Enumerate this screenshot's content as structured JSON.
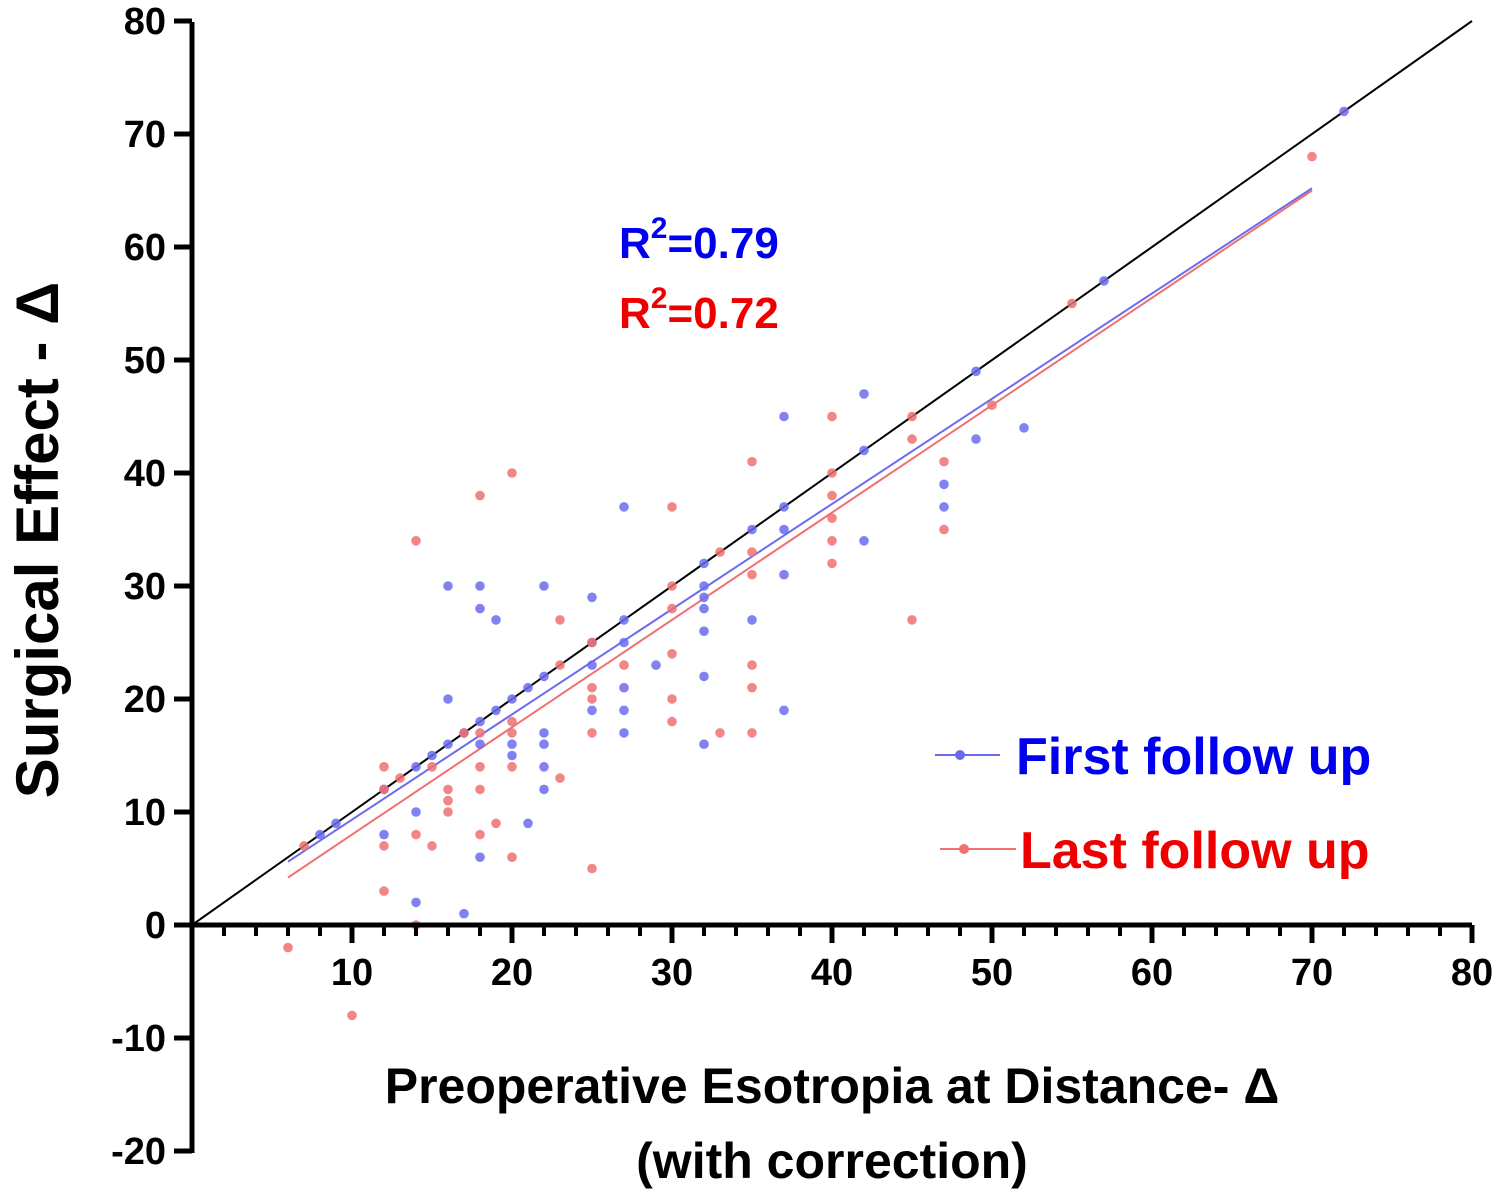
{
  "chart_data": {
    "type": "scatter",
    "xlabel": "Preoperative Esotropia at Distance- Δ",
    "xlabel_sub": "(with correction)",
    "ylabel": "Surgical Effect - Δ",
    "xlim": [
      0,
      80
    ],
    "ylim": [
      -20,
      80
    ],
    "x_ticks": [
      10,
      20,
      30,
      40,
      50,
      60,
      70,
      80
    ],
    "y_ticks": [
      -20,
      -10,
      0,
      10,
      20,
      30,
      40,
      50,
      60,
      70,
      80
    ],
    "grid": false,
    "legend_position": "bottom-right",
    "annotations": [
      {
        "text": "R2=0.79",
        "base": "R",
        "sup": "2",
        "rest": "=0.79",
        "color": "#0000ee"
      },
      {
        "text": "R2=0.72",
        "base": "R",
        "sup": "2",
        "rest": "=0.72",
        "color": "#ee0000"
      }
    ],
    "identity_line": {
      "x": [
        0,
        80
      ],
      "y": [
        0,
        80
      ],
      "color": "#000000"
    },
    "series": [
      {
        "name": "First follow up",
        "color": "#6b6bf0",
        "label_color": "#0000ee",
        "fit": {
          "x": [
            6,
            70
          ],
          "y": [
            5.6,
            65.2
          ]
        },
        "points": [
          [
            8,
            8
          ],
          [
            9,
            9
          ],
          [
            12,
            8
          ],
          [
            12,
            12
          ],
          [
            14,
            14
          ],
          [
            14,
            10
          ],
          [
            14,
            2
          ],
          [
            15,
            15
          ],
          [
            16,
            16
          ],
          [
            16,
            20
          ],
          [
            16,
            30
          ],
          [
            17,
            17
          ],
          [
            17,
            1
          ],
          [
            18,
            18
          ],
          [
            18,
            30
          ],
          [
            18,
            28
          ],
          [
            18,
            16
          ],
          [
            18,
            6
          ],
          [
            19,
            19
          ],
          [
            19,
            27
          ],
          [
            20,
            20
          ],
          [
            20,
            16
          ],
          [
            20,
            15
          ],
          [
            21,
            21
          ],
          [
            21,
            9
          ],
          [
            22,
            22
          ],
          [
            22,
            30
          ],
          [
            22,
            17
          ],
          [
            22,
            16
          ],
          [
            22,
            14
          ],
          [
            22,
            12
          ],
          [
            25,
            25
          ],
          [
            25,
            29
          ],
          [
            25,
            23
          ],
          [
            25,
            19
          ],
          [
            27,
            27
          ],
          [
            27,
            37
          ],
          [
            27,
            25
          ],
          [
            27,
            21
          ],
          [
            27,
            19
          ],
          [
            27,
            17
          ],
          [
            29,
            23
          ],
          [
            32,
            32
          ],
          [
            32,
            30
          ],
          [
            32,
            29
          ],
          [
            32,
            28
          ],
          [
            32,
            26
          ],
          [
            32,
            22
          ],
          [
            32,
            16
          ],
          [
            35,
            35
          ],
          [
            35,
            27
          ],
          [
            37,
            37
          ],
          [
            37,
            35
          ],
          [
            37,
            31
          ],
          [
            37,
            45
          ],
          [
            37,
            19
          ],
          [
            42,
            42
          ],
          [
            42,
            47
          ],
          [
            42,
            34
          ],
          [
            47,
            39
          ],
          [
            47,
            37
          ],
          [
            49,
            49
          ],
          [
            49,
            43
          ],
          [
            52,
            44
          ],
          [
            57,
            57
          ],
          [
            72,
            72
          ]
        ]
      },
      {
        "name": "Last follow up",
        "color": "#f07070",
        "label_color": "#ee0000",
        "fit": {
          "x": [
            6,
            70
          ],
          "y": [
            4.2,
            65.0
          ]
        },
        "points": [
          [
            6,
            -2
          ],
          [
            7,
            7
          ],
          [
            10,
            -8
          ],
          [
            12,
            14
          ],
          [
            12,
            12
          ],
          [
            12,
            7
          ],
          [
            12,
            3
          ],
          [
            13,
            13
          ],
          [
            14,
            34
          ],
          [
            14,
            8
          ],
          [
            14,
            0
          ],
          [
            15,
            14
          ],
          [
            15,
            7
          ],
          [
            16,
            12
          ],
          [
            16,
            11
          ],
          [
            16,
            10
          ],
          [
            17,
            17
          ],
          [
            18,
            38
          ],
          [
            18,
            17
          ],
          [
            18,
            14
          ],
          [
            18,
            12
          ],
          [
            18,
            8
          ],
          [
            19,
            9
          ],
          [
            20,
            40
          ],
          [
            20,
            18
          ],
          [
            20,
            17
          ],
          [
            20,
            14
          ],
          [
            20,
            6
          ],
          [
            23,
            27
          ],
          [
            23,
            23
          ],
          [
            23,
            13
          ],
          [
            25,
            25
          ],
          [
            25,
            21
          ],
          [
            25,
            20
          ],
          [
            25,
            17
          ],
          [
            25,
            5
          ],
          [
            27,
            23
          ],
          [
            30,
            37
          ],
          [
            30,
            30
          ],
          [
            30,
            28
          ],
          [
            30,
            24
          ],
          [
            30,
            20
          ],
          [
            30,
            18
          ],
          [
            33,
            33
          ],
          [
            33,
            17
          ],
          [
            35,
            41
          ],
          [
            35,
            33
          ],
          [
            35,
            31
          ],
          [
            35,
            23
          ],
          [
            35,
            21
          ],
          [
            35,
            17
          ],
          [
            40,
            45
          ],
          [
            40,
            40
          ],
          [
            40,
            38
          ],
          [
            40,
            36
          ],
          [
            40,
            34
          ],
          [
            40,
            32
          ],
          [
            45,
            45
          ],
          [
            45,
            43
          ],
          [
            45,
            27
          ],
          [
            47,
            41
          ],
          [
            47,
            35
          ],
          [
            50,
            46
          ],
          [
            55,
            55
          ],
          [
            70,
            68
          ]
        ]
      }
    ]
  }
}
